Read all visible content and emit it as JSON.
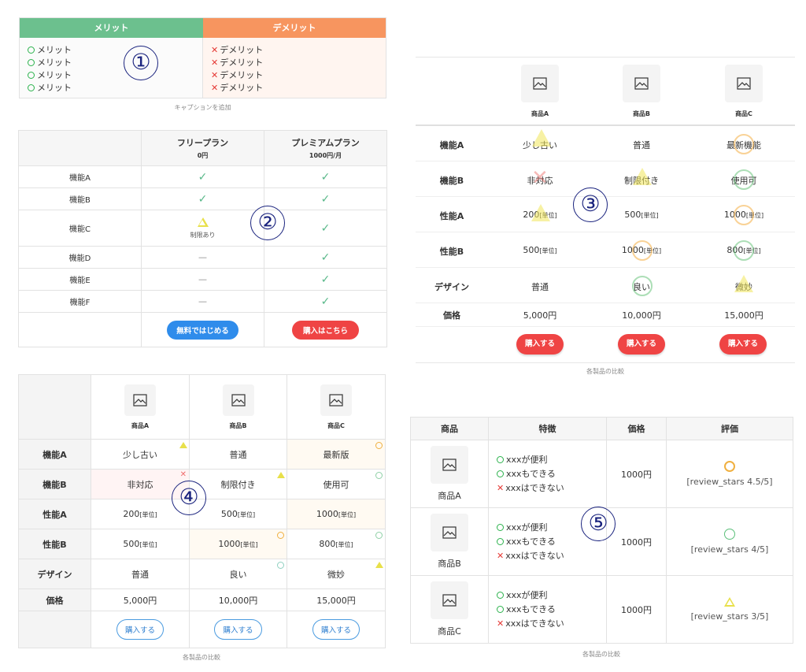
{
  "t1": {
    "merit_header": "メリット",
    "demerit_header": "デメリット",
    "merits": [
      "メリット",
      "メリット",
      "メリット",
      "メリット"
    ],
    "demerits": [
      "デメリット",
      "デメリット",
      "デメリット",
      "デメリット"
    ],
    "caption": "キャプションを追加",
    "num": "①"
  },
  "t2": {
    "plans": [
      {
        "name": "フリープラン",
        "price": "0円",
        "button": "無料ではじめる"
      },
      {
        "name": "プレミアムプラン",
        "price": "1000円/月",
        "button": "購入はこちら"
      }
    ],
    "rows": [
      {
        "label": "機能A",
        "free": "check",
        "prem": "check"
      },
      {
        "label": "機能B",
        "free": "check",
        "prem": "check"
      },
      {
        "label": "機能C",
        "free": "triangle",
        "free_note": "制限あり",
        "prem": "check"
      },
      {
        "label": "機能D",
        "free": "—",
        "prem": "check"
      },
      {
        "label": "機能E",
        "free": "—",
        "prem": "check"
      },
      {
        "label": "機能F",
        "free": "—",
        "prem": "check"
      }
    ],
    "num": "②"
  },
  "t3": {
    "products": [
      "商品A",
      "商品B",
      "商品C"
    ],
    "rows": [
      {
        "label": "機能A",
        "cells": [
          "少し古い",
          "普通",
          "最新機能"
        ]
      },
      {
        "label": "機能B",
        "cells": [
          "非対応",
          "制限付き",
          "使用可"
        ]
      },
      {
        "label": "性能A",
        "cells": [
          "200",
          "500",
          "1000"
        ]
      },
      {
        "label": "性能B",
        "cells": [
          "500",
          "1000",
          "800"
        ]
      },
      {
        "label": "デザイン",
        "cells": [
          "普通",
          "良い",
          "微妙"
        ]
      },
      {
        "label": "価格",
        "cells": [
          "5,000円",
          "10,000円",
          "15,000円"
        ]
      }
    ],
    "unit": "[単位]",
    "buy": "購入する",
    "caption": "各製品の比較",
    "num": "③"
  },
  "t4": {
    "products": [
      "商品A",
      "商品B",
      "商品C"
    ],
    "rows": [
      {
        "label": "機能A",
        "cells": [
          "少し古い",
          "普通",
          "最新版"
        ]
      },
      {
        "label": "機能B",
        "cells": [
          "非対応",
          "制限付き",
          "使用可"
        ]
      },
      {
        "label": "性能A",
        "cells": [
          "200",
          "500",
          "1000"
        ]
      },
      {
        "label": "性能B",
        "cells": [
          "500",
          "1000",
          "800"
        ]
      },
      {
        "label": "デザイン",
        "cells": [
          "普通",
          "良い",
          "微妙"
        ]
      },
      {
        "label": "価格",
        "cells": [
          "5,000円",
          "10,000円",
          "15,000円"
        ]
      }
    ],
    "unit": "[単位]",
    "buy": "購入する",
    "caption": "各製品の比較",
    "num": "④"
  },
  "t5": {
    "headers": [
      "商品",
      "特徴",
      "価格",
      "評価"
    ],
    "rows": [
      {
        "name": "商品A",
        "f1": "xxxが便利",
        "f2": "xxxもできる",
        "f3": "xxxはできない",
        "price": "1000円",
        "rating": "[review_stars 4.5/5]"
      },
      {
        "name": "商品B",
        "f1": "xxxが便利",
        "f2": "xxxもできる",
        "f3": "xxxはできない",
        "price": "1000円",
        "rating": "[review_stars 4/5]"
      },
      {
        "name": "商品C",
        "f1": "xxxが便利",
        "f2": "xxxもできる",
        "f3": "xxxはできない",
        "price": "1000円",
        "rating": "[review_stars 3/5]"
      }
    ],
    "caption": "各製品の比較",
    "num": "⑤"
  },
  "colors": {
    "green_header": "#6cc08e",
    "orange_header": "#f7955f",
    "blue_button": "#2f8ceb",
    "red_button": "#ef4444",
    "outline_button": "#4a9be0"
  }
}
